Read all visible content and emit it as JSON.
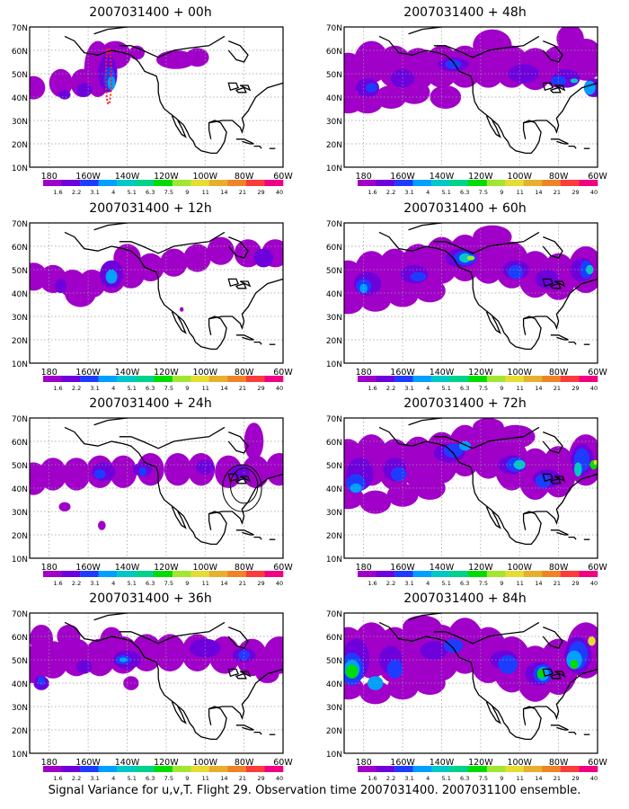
{
  "figure": {
    "caption": "Signal Variance for u,v,T. Flight 29. Observation time 2007031400. 2007031100 ensemble."
  },
  "axes": {
    "lat_labels": [
      "10N",
      "20N",
      "30N",
      "40N",
      "50N",
      "60N",
      "70N"
    ],
    "lon_labels": [
      "180",
      "160W",
      "140W",
      "120W",
      "100W",
      "80W",
      "60W"
    ]
  },
  "colorbar": {
    "levels": [
      "1.6",
      "2.2",
      "3.1",
      "4",
      "5.1",
      "6.3",
      "7.5",
      "9",
      "11",
      "14",
      "21",
      "29",
      "40"
    ],
    "colors": [
      "#a000c8",
      "#6e00dc",
      "#1e3cff",
      "#00a0ff",
      "#00c8c8",
      "#00d28c",
      "#00dc00",
      "#a0e632",
      "#e6dc32",
      "#e6af2d",
      "#f08228",
      "#fa3c3c",
      "#f00082"
    ]
  },
  "panels": [
    {
      "title": "2007031400 + 00h",
      "lead_hours": 0,
      "annotation": "red dotted track over 50N 148W"
    },
    {
      "title": "2007031400 + 12h",
      "lead_hours": 12
    },
    {
      "title": "2007031400 + 24h",
      "lead_hours": 24,
      "annotation": "concentric circles near 40N 82W"
    },
    {
      "title": "2007031400 + 36h",
      "lead_hours": 36
    },
    {
      "title": "2007031400 + 48h",
      "lead_hours": 48
    },
    {
      "title": "2007031400 + 60h",
      "lead_hours": 60
    },
    {
      "title": "2007031400 + 72h",
      "lead_hours": 72
    },
    {
      "title": "2007031400 + 84h",
      "lead_hours": 84
    }
  ]
}
